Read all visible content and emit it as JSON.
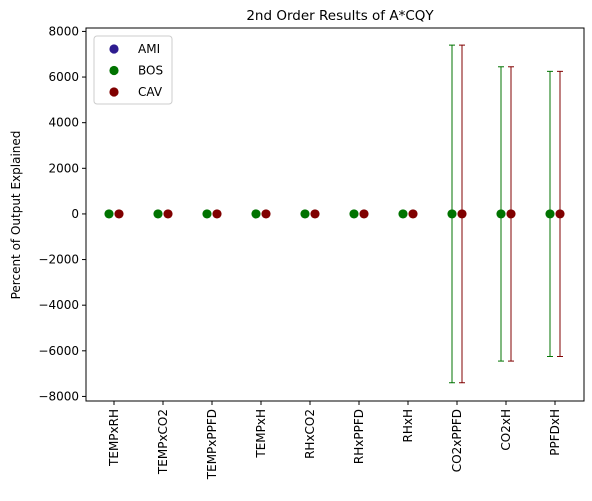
{
  "chart_data": {
    "type": "scatter",
    "title": "2nd Order Results of A*CQY",
    "xlabel": "",
    "ylabel": "Percent of Output Explained",
    "ylim": [
      -8200,
      8150
    ],
    "yticks": [
      8000,
      6000,
      4000,
      2000,
      0,
      -2000,
      -4000,
      -6000,
      -8000
    ],
    "categories": [
      "TEMPxRH",
      "TEMPxCO2",
      "TEMPxPPFD",
      "TEMPxH",
      "RHxCO2",
      "RHxPPFD",
      "RHxH",
      "CO2xPPFD",
      "CO2xH",
      "PPFDxH"
    ],
    "legend_position": "top-left",
    "grid": false,
    "series": [
      {
        "name": "AMI",
        "color": "#2d1b8f",
        "values": [],
        "errors": []
      },
      {
        "name": "BOS",
        "color": "#007300",
        "values": [
          0,
          0,
          0,
          0,
          0,
          0,
          0,
          0,
          0,
          0
        ],
        "errors": [
          0,
          0,
          0,
          0,
          0,
          0,
          0,
          7400,
          6450,
          6250
        ]
      },
      {
        "name": "CAV",
        "color": "#800000",
        "values": [
          0,
          0,
          0,
          0,
          0,
          0,
          0,
          0,
          0,
          0
        ],
        "errors": [
          0,
          0,
          0,
          0,
          0,
          0,
          0,
          7400,
          6450,
          6250
        ]
      }
    ]
  }
}
